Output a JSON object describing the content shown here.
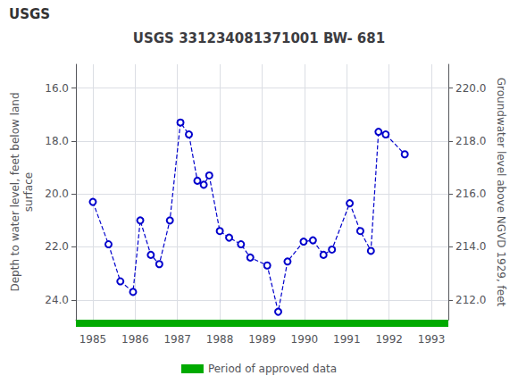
{
  "chart_data": {
    "type": "line",
    "title": "USGS 331234081371001 BW- 681",
    "annotations": [
      "USGS"
    ],
    "ylabel": "Depth to water level, feet below land\nsurface",
    "y2label": "Groundwater level above NGVD 1929, feet",
    "xlim": [
      1984.6,
      1993.4
    ],
    "xticks": [
      1985,
      1986,
      1987,
      1988,
      1989,
      1990,
      1991,
      1992,
      1993
    ],
    "ylim": [
      24.75,
      15.1
    ],
    "yticks": [
      {
        "value": 16.0,
        "label": "16.0"
      },
      {
        "value": 18.0,
        "label": "18.0"
      },
      {
        "value": 20.0,
        "label": "20.0"
      },
      {
        "value": 22.0,
        "label": "22.0"
      },
      {
        "value": 24.0,
        "label": "24.0"
      }
    ],
    "y2lim": [
      211.25,
      220.9
    ],
    "y2ticks": [
      {
        "value": 220,
        "label": "220.0"
      },
      {
        "value": 218,
        "label": "218.0"
      },
      {
        "value": 216,
        "label": "216.0"
      },
      {
        "value": 214,
        "label": "214.0"
      },
      {
        "value": 212,
        "label": "212.0"
      }
    ],
    "grid": true,
    "legend": "bottom",
    "series": [
      {
        "type": "line",
        "color": "#0000cc",
        "marker": "circle",
        "line_style": "dashed",
        "x": [
          1985.0,
          1985.37,
          1985.65,
          1985.95,
          1986.12,
          1986.37,
          1986.57,
          1986.82,
          1987.07,
          1987.27,
          1987.47,
          1987.62,
          1987.75,
          1988.0,
          1988.22,
          1988.5,
          1988.72,
          1989.12,
          1989.38,
          1989.6,
          1989.98,
          1990.2,
          1990.45,
          1990.65,
          1991.07,
          1991.32,
          1991.57,
          1991.75,
          1991.92,
          1992.37
        ],
        "values": [
          20.3,
          21.9,
          23.3,
          23.7,
          21.0,
          22.3,
          22.65,
          21.0,
          17.3,
          17.75,
          19.5,
          19.65,
          19.3,
          21.4,
          21.65,
          21.9,
          22.4,
          22.7,
          24.45,
          22.55,
          21.8,
          21.75,
          22.3,
          22.1,
          20.35,
          21.4,
          22.15,
          17.65,
          17.75,
          18.5
        ]
      },
      {
        "name": "Period of approved data",
        "type": "period",
        "color": "#00aa00",
        "x": [
          1984.6,
          1993.4
        ]
      }
    ]
  }
}
